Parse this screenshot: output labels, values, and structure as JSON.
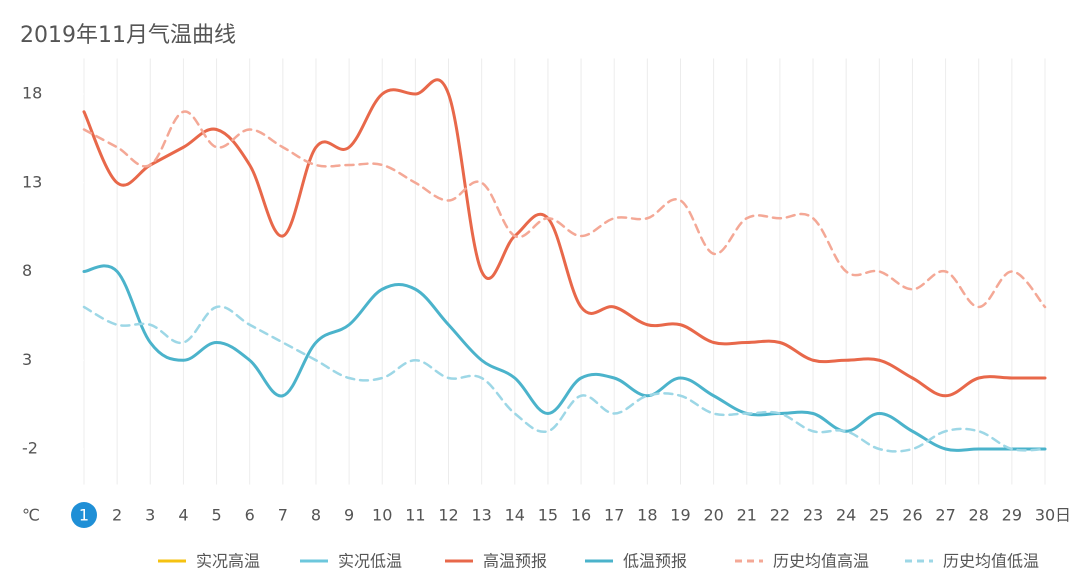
{
  "chart_data": {
    "type": "line",
    "title": "2019年11月气温曲线",
    "y_unit": "℃",
    "x_unit": "日",
    "selected": "1",
    "categories": [
      "1",
      "2",
      "3",
      "4",
      "5",
      "6",
      "7",
      "8",
      "9",
      "10",
      "11",
      "12",
      "13",
      "14",
      "15",
      "16",
      "17",
      "18",
      "19",
      "20",
      "21",
      "22",
      "23",
      "24",
      "25",
      "26",
      "27",
      "28",
      "29",
      "30"
    ],
    "ylim": [
      -4,
      20
    ],
    "yticks": [
      -2,
      3,
      8,
      13,
      18
    ],
    "grid": "x",
    "series": [
      {
        "name": "实况高温",
        "color": "#f5c211",
        "dashed": false,
        "values": [
          null,
          null,
          null,
          null,
          null,
          null,
          null,
          null,
          null,
          null,
          null,
          null,
          null,
          null,
          null,
          null,
          null,
          null,
          null,
          null,
          null,
          null,
          null,
          null,
          null,
          null,
          null,
          null,
          null,
          null
        ]
      },
      {
        "name": "实况低温",
        "color": "#6cc7dc",
        "dashed": false,
        "values": [
          null,
          null,
          null,
          null,
          null,
          null,
          null,
          null,
          null,
          null,
          null,
          null,
          null,
          null,
          null,
          null,
          null,
          null,
          null,
          null,
          null,
          null,
          null,
          null,
          null,
          null,
          null,
          null,
          null,
          null
        ]
      },
      {
        "name": "高温预报",
        "color": "#e8684a",
        "dashed": false,
        "values": [
          17,
          13,
          14,
          15,
          16,
          14,
          10,
          15,
          15,
          18,
          18,
          18,
          8,
          10,
          11,
          6,
          6,
          5,
          5,
          4,
          4,
          4,
          3,
          3,
          3,
          2,
          1,
          2,
          2,
          2
        ]
      },
      {
        "name": "低温预报",
        "color": "#4bb3cb",
        "dashed": false,
        "values": [
          8,
          8,
          4,
          3,
          4,
          3,
          1,
          4,
          5,
          7,
          7,
          5,
          3,
          2,
          0,
          2,
          2,
          1,
          2,
          1,
          0,
          0,
          0,
          -1,
          0,
          -1,
          -2,
          -2,
          -2,
          -2
        ]
      },
      {
        "name": "历史均值高温",
        "color": "#f4a896",
        "dashed": true,
        "values": [
          16,
          15,
          14,
          17,
          15,
          16,
          15,
          14,
          14,
          14,
          13,
          12,
          13,
          10,
          11,
          10,
          11,
          11,
          12,
          9,
          11,
          11,
          11,
          8,
          8,
          7,
          8,
          6,
          8,
          6
        ]
      },
      {
        "name": "历史均值低温",
        "color": "#9dd7e6",
        "dashed": true,
        "values": [
          6,
          5,
          5,
          4,
          6,
          5,
          4,
          3,
          2,
          2,
          3,
          2,
          2,
          0,
          -1,
          1,
          0,
          1,
          1,
          0,
          0,
          0,
          -1,
          -1,
          -2,
          -2,
          -1,
          -1,
          -2,
          -2
        ]
      }
    ]
  }
}
